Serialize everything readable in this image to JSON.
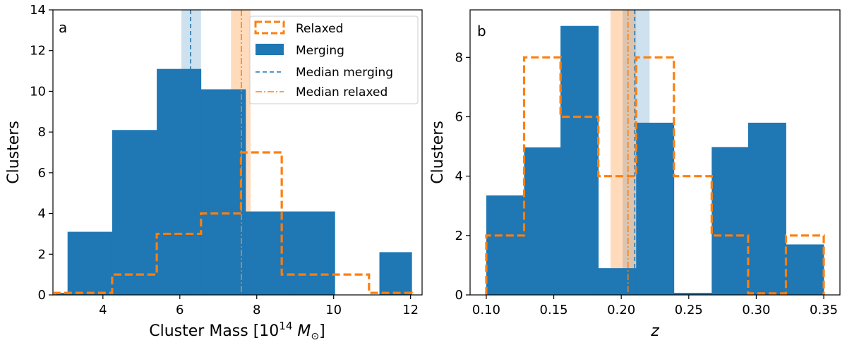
{
  "colors": {
    "merging": "#1f77b4",
    "relaxed": "#ff7f0e",
    "merging_band": "#a6c8e4",
    "relaxed_band": "#ffcfa6"
  },
  "chart_data": [
    {
      "type": "histogram",
      "panel_letter": "a",
      "xlabel_main": "Cluster Mass [10",
      "xlabel_sup": "14",
      "xlabel_unit": "M",
      "xlabel_sub": "⊙",
      "xlabel_close": "]",
      "ylabel": "Clusters",
      "xlim": [
        2.7,
        12.3
      ],
      "ylim": [
        0,
        14
      ],
      "xticks": [
        4,
        6,
        8,
        10,
        12
      ],
      "yticks": [
        0,
        2,
        4,
        6,
        8,
        10,
        12,
        14
      ],
      "merging": {
        "edges": [
          2.75,
          3.08,
          4.24,
          5.4,
          6.55,
          7.71,
          8.87,
          10.03,
          11.19,
          12.03
        ],
        "counts": [
          0.1,
          3.1,
          8.1,
          11.1,
          10.1,
          4.1,
          4.1,
          0,
          2.1
        ]
      },
      "relaxed": {
        "edges": [
          2.75,
          4.24,
          5.4,
          6.55,
          7.59,
          8.65,
          9.76,
          10.92,
          12.03
        ],
        "counts": [
          0.1,
          1,
          3,
          4,
          7,
          1,
          1,
          0.1
        ]
      },
      "median_merging": 6.28,
      "median_merging_band": [
        6.04,
        6.55
      ],
      "median_relaxed": 7.6,
      "median_relaxed_band": [
        7.33,
        7.84
      ],
      "legend": {
        "relaxed": "Relaxed",
        "merging": "Merging",
        "median_merging": "Median merging",
        "median_relaxed": "Median relaxed"
      }
    },
    {
      "type": "histogram",
      "panel_letter": "b",
      "xlabel": "z",
      "ylabel": "Clusters",
      "xlim": [
        0.088,
        0.362
      ],
      "ylim": [
        0,
        9.6
      ],
      "xticks": [
        0.1,
        0.15,
        0.2,
        0.25,
        0.3,
        0.35
      ],
      "xtick_labels": [
        "0.10",
        "0.15",
        "0.20",
        "0.25",
        "0.30",
        "0.35"
      ],
      "yticks": [
        0,
        2,
        4,
        6,
        8
      ],
      "merging": {
        "edges": [
          0.1,
          0.128,
          0.155,
          0.183,
          0.211,
          0.239,
          0.267,
          0.294,
          0.322,
          0.35
        ],
        "counts": [
          3.35,
          4.97,
          9.06,
          0.9,
          5.8,
          0.07,
          4.98,
          5.8,
          1.7
        ]
      },
      "relaxed": {
        "edges": [
          0.1,
          0.128,
          0.155,
          0.183,
          0.211,
          0.239,
          0.267,
          0.294,
          0.322,
          0.35
        ],
        "counts": [
          2,
          8,
          6,
          4,
          8,
          4,
          2,
          0.05,
          2
        ]
      },
      "median_merging": 0.21,
      "median_merging_band": [
        0.201,
        0.221
      ],
      "median_relaxed": 0.205,
      "median_relaxed_band": [
        0.192,
        0.211
      ]
    }
  ]
}
